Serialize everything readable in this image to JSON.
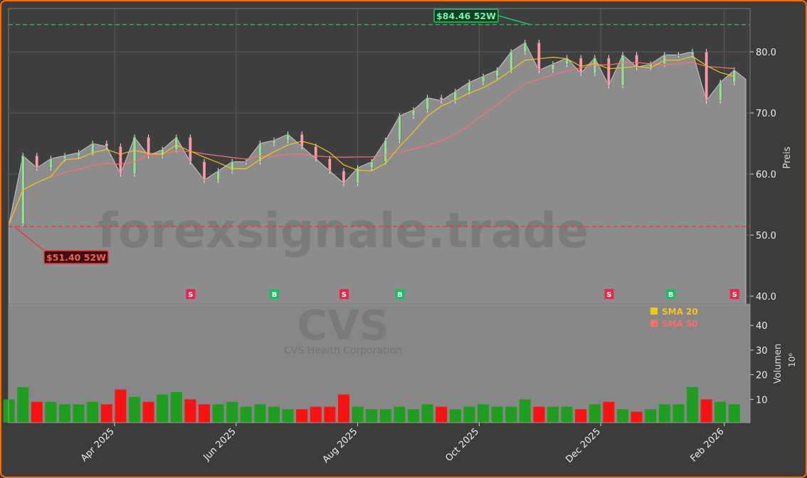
{
  "chart_data": {
    "type": "candlestick-with-volume",
    "ticker_watermark": "CVS",
    "company_watermark": "CVS Health Corporation",
    "site_watermark": "forexsignale.trade",
    "price_axis": {
      "label": "Preis",
      "ticks": [
        "40.0",
        "50.0",
        "60.0",
        "70.0",
        "80.0"
      ],
      "ylim": [
        40,
        86
      ]
    },
    "volume_axis": {
      "label": "Volumen",
      "unit": "10⁶",
      "ticks": [
        "10",
        "20",
        "30",
        "40"
      ],
      "ylim": [
        0,
        46
      ]
    },
    "x_ticks": [
      {
        "date": "2025-04-01",
        "label": "Apr 2025"
      },
      {
        "date": "2025-06-01",
        "label": "Jun 2025"
      },
      {
        "date": "2025-08-01",
        "label": "Aug 2025"
      },
      {
        "date": "2025-10-01",
        "label": "Oct 2025"
      },
      {
        "date": "2025-12-01",
        "label": "Dec 2025"
      },
      {
        "date": "2026-02-01",
        "label": "Feb 2026"
      }
    ],
    "start_date": "2025-02-07",
    "interval_days": 7,
    "closes": [
      51.8,
      63,
      61,
      62.5,
      63,
      63.5,
      65,
      64.5,
      60,
      66,
      63,
      64,
      66,
      62,
      59,
      60.5,
      62,
      62,
      65,
      65.5,
      66.5,
      64.5,
      62.5,
      60.5,
      58.5,
      61,
      62,
      65.5,
      69.5,
      70.5,
      72.5,
      72,
      73.5,
      75,
      76,
      77,
      80,
      81.5,
      77,
      78,
      79,
      76.5,
      79,
      74.5,
      79.5,
      77.5,
      78,
      79.5,
      79.5,
      80,
      72,
      75,
      77
    ],
    "volumes": [
      10,
      15,
      9,
      9,
      8,
      8,
      9,
      8,
      14,
      11,
      9,
      12,
      13,
      10,
      8,
      8,
      9,
      7,
      8,
      7,
      6,
      6,
      7,
      7,
      12,
      7,
      6,
      6,
      7,
      6,
      8,
      7,
      6,
      7,
      8,
      7,
      7,
      10,
      7,
      7,
      7,
      6,
      8,
      9,
      6,
      5,
      6,
      8,
      8,
      15,
      10,
      9,
      8
    ],
    "high_52w": {
      "value": 84.46,
      "label": "$84.46 52W",
      "color": "#22c55e"
    },
    "low_52w": {
      "value": 51.4,
      "label": "$51.40 52W",
      "color": "#e53935"
    },
    "signals": [
      {
        "date": "2025-05-09",
        "type": "S"
      },
      {
        "date": "2025-06-20",
        "type": "B"
      },
      {
        "date": "2025-07-25",
        "type": "S"
      },
      {
        "date": "2025-08-22",
        "type": "B"
      },
      {
        "date": "2025-12-05",
        "type": "S"
      },
      {
        "date": "2026-01-05",
        "type": "B"
      },
      {
        "date": "2026-02-06",
        "type": "S"
      }
    ],
    "legend": [
      {
        "label": "SMA 20",
        "color": "#f5c518"
      },
      {
        "label": "SMA 50",
        "color": "#ff6b6b"
      }
    ],
    "legend_placement": "top-right of volume panel",
    "colors": {
      "up": "#8fe08f",
      "down": "#ff9aa8",
      "vol_up": "#1e9e1e",
      "vol_down": "#ff1010",
      "area": "#8c8c8c",
      "signal_buy": "#16c060",
      "signal_sell": "#f0244c"
    },
    "grid": true
  }
}
